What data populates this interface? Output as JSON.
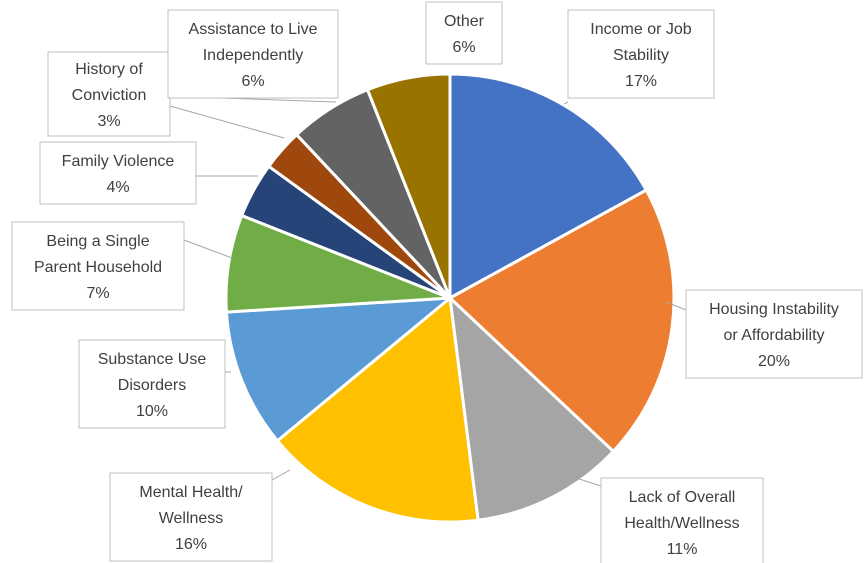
{
  "chart_data": {
    "type": "pie",
    "title": "",
    "slices": [
      {
        "label": "Income or Job Stability",
        "value": 17,
        "display": "17%",
        "color": "#4472C4"
      },
      {
        "label": "Housing Instability or Affordability",
        "value": 20,
        "display": "20%",
        "color": "#ED7D31"
      },
      {
        "label": "Lack of Overall Health/Wellness",
        "value": 11,
        "display": "11%",
        "color": "#A5A5A5"
      },
      {
        "label": "Mental Health/ Wellness",
        "value": 16,
        "display": "16%",
        "color": "#FFC000"
      },
      {
        "label": "Substance Use Disorders",
        "value": 10,
        "display": "10%",
        "color": "#5B9BD5"
      },
      {
        "label": "Being a Single Parent Household",
        "value": 7,
        "display": "7%",
        "color": "#70AD47"
      },
      {
        "label": "Family Violence",
        "value": 4,
        "display": "4%",
        "color": "#264478"
      },
      {
        "label": "History of Conviction",
        "value": 3,
        "display": "3%",
        "color": "#9E480E"
      },
      {
        "label": "Assistance to Live Independently",
        "value": 6,
        "display": "6%",
        "color": "#636363"
      },
      {
        "label": "Other",
        "value": 6,
        "display": "6%",
        "color": "#997300"
      }
    ]
  }
}
